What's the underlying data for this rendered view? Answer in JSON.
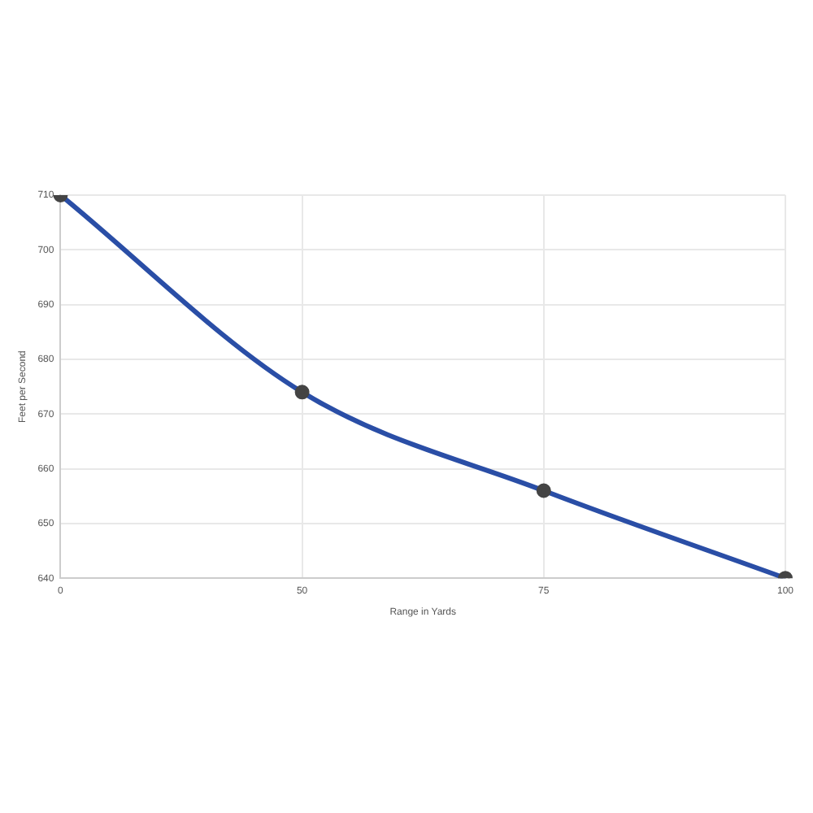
{
  "chart_data": {
    "type": "line",
    "xlabel": "Range in Yards",
    "ylabel": "Feet per Second",
    "categories": [
      "0",
      "50",
      "75",
      "100"
    ],
    "series": [
      {
        "color": "#2a4ea6",
        "values": [
          710,
          674,
          656,
          640
        ]
      }
    ],
    "ylim": [
      640,
      710
    ],
    "yticks": [
      640,
      650,
      660,
      670,
      680,
      690,
      700,
      710
    ],
    "grid": true,
    "marker": "circle",
    "legend": false
  }
}
